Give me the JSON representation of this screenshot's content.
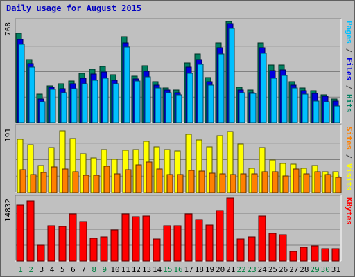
{
  "title": "Daily usage for August 2015",
  "chart_data": [
    {
      "type": "bar",
      "name_panel": "pages-files-hits",
      "ymax": 768,
      "ymax_label": "768",
      "right_label_parts": [
        {
          "text": "Pages",
          "color": "#00c0ff"
        },
        {
          "text": " / ",
          "color": "#404040"
        },
        {
          "text": "Files",
          "color": "#0000e0"
        },
        {
          "text": " / ",
          "color": "#404040"
        },
        {
          "text": "Hits",
          "color": "#008060"
        }
      ],
      "categories": [
        "1",
        "2",
        "3",
        "4",
        "5",
        "6",
        "7",
        "8",
        "9",
        "10",
        "11",
        "12",
        "13",
        "14",
        "15",
        "16",
        "17",
        "18",
        "19",
        "20",
        "21",
        "22",
        "23",
        "24",
        "25",
        "26",
        "27",
        "28",
        "29",
        "30",
        "31"
      ],
      "series": [
        {
          "name": "Hits",
          "color": "#008060",
          "values": [
            674,
            477,
            212,
            276,
            290,
            316,
            371,
            400,
            424,
            361,
            650,
            350,
            428,
            308,
            261,
            243,
            450,
            515,
            342,
            599,
            764,
            264,
            244,
            603,
            432,
            432,
            309,
            260,
            241,
            209,
            178
          ]
        },
        {
          "name": "Files",
          "color": "#0000e0",
          "values": [
            628,
            444,
            178,
            264,
            257,
            290,
            334,
            365,
            380,
            318,
            600,
            331,
            387,
            284,
            246,
            226,
            420,
            474,
            306,
            565,
            748,
            245,
            225,
            565,
            394,
            395,
            281,
            242,
            219,
            197,
            163
          ]
        },
        {
          "name": "Pages",
          "color": "#00c0ff",
          "values": [
            589,
            419,
            159,
            253,
            223,
            255,
            295,
            321,
            333,
            290,
            570,
            312,
            347,
            261,
            225,
            207,
            373,
            439,
            281,
            516,
            708,
            225,
            220,
            523,
            336,
            353,
            260,
            215,
            164,
            155,
            127
          ]
        }
      ]
    },
    {
      "type": "bar",
      "name_panel": "sites-visits",
      "ymax": 191,
      "ymax_label": "191",
      "right_label_parts": [
        {
          "text": "Sites",
          "color": "#ff8000"
        },
        {
          "text": " / ",
          "color": "#404040"
        },
        {
          "text": "Visits",
          "color": "#ffff00"
        }
      ],
      "categories": [
        "1",
        "2",
        "3",
        "4",
        "5",
        "6",
        "7",
        "8",
        "9",
        "10",
        "11",
        "12",
        "13",
        "14",
        "15",
        "16",
        "17",
        "18",
        "19",
        "20",
        "21",
        "22",
        "23",
        "24",
        "25",
        "26",
        "27",
        "28",
        "29",
        "30",
        "31"
      ],
      "series": [
        {
          "name": "Visits",
          "color": "#ffff00",
          "values": [
            154,
            138,
            78,
            131,
            178,
            157,
            113,
            100,
            124,
            96,
            123,
            124,
            149,
            133,
            125,
            121,
            168,
            153,
            132,
            165,
            176,
            140,
            70,
            130,
            95,
            85,
            82,
            70,
            79,
            60,
            60
          ]
        },
        {
          "name": "Sites",
          "color": "#ff8000",
          "values": [
            66,
            52,
            58,
            75,
            69,
            61,
            51,
            50,
            77,
            54,
            67,
            81,
            89,
            68,
            52,
            52,
            64,
            63,
            56,
            54,
            52,
            55,
            54,
            61,
            60,
            49,
            68,
            55,
            60,
            52,
            45
          ]
        }
      ]
    },
    {
      "type": "bar",
      "name_panel": "kbytes",
      "ymax": 14832,
      "ymax_label": "14832",
      "right_label_parts": [
        {
          "text": "KBytes",
          "color": "#ff0000"
        }
      ],
      "categories": [
        "1",
        "2",
        "3",
        "4",
        "5",
        "6",
        "7",
        "8",
        "9",
        "10",
        "11",
        "12",
        "13",
        "14",
        "15",
        "16",
        "17",
        "18",
        "19",
        "20",
        "21",
        "22",
        "23",
        "24",
        "25",
        "26",
        "27",
        "28",
        "29",
        "30",
        "31"
      ],
      "series": [
        {
          "name": "KBytes",
          "color": "#ff0000",
          "values": [
            13100,
            14000,
            3700,
            8300,
            8000,
            11000,
            9200,
            5300,
            5700,
            7300,
            11000,
            10300,
            10500,
            5200,
            8200,
            8200,
            11000,
            9700,
            8400,
            11700,
            14700,
            5100,
            5700,
            10400,
            6400,
            6200,
            2300,
            3300,
            3600,
            2900,
            2900
          ]
        }
      ]
    }
  ],
  "x_axis": {
    "labels": [
      "1",
      "2",
      "3",
      "4",
      "5",
      "6",
      "7",
      "8",
      "9",
      "10",
      "11",
      "12",
      "13",
      "14",
      "15",
      "16",
      "17",
      "18",
      "19",
      "20",
      "21",
      "22",
      "23",
      "24",
      "25",
      "26",
      "27",
      "28",
      "29",
      "30",
      "31"
    ],
    "weekend_color": "#008040",
    "weekday_color": "#000000",
    "weekend_days": [
      "1",
      "2",
      "8",
      "9",
      "15",
      "16",
      "22",
      "23",
      "29",
      "30"
    ]
  }
}
